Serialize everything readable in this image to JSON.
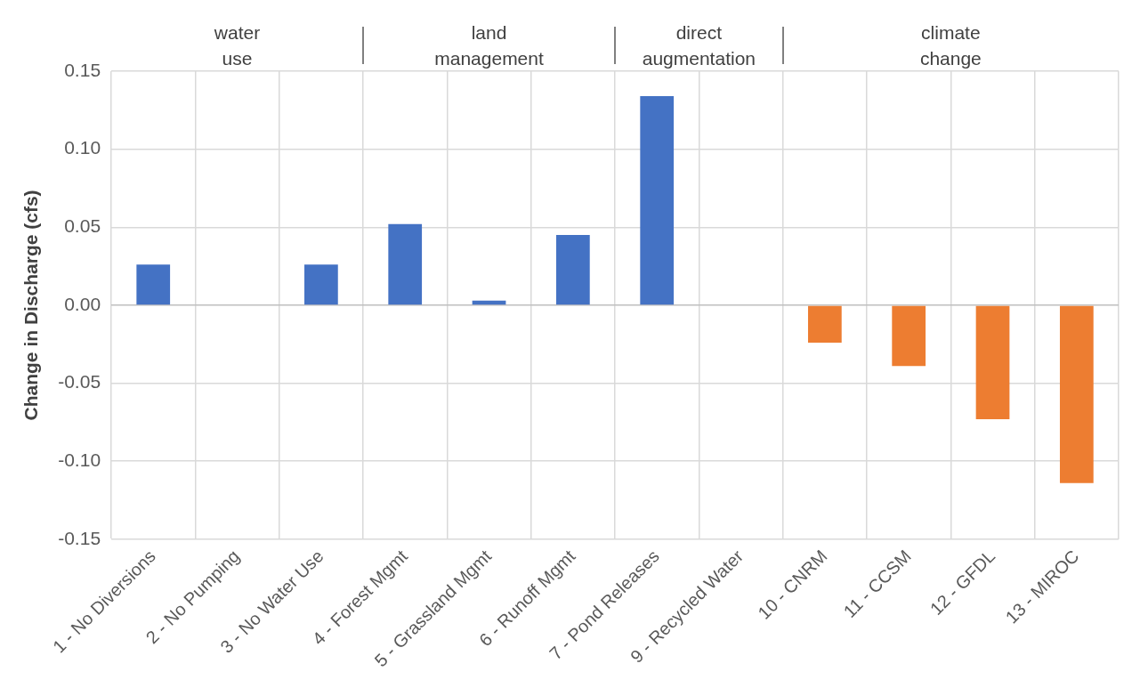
{
  "chart_data": {
    "type": "bar",
    "ylabel": "Change in Discharge (cfs)",
    "categories": [
      "1 - No Diversions",
      "2 - No Pumping",
      "3 - No Water Use",
      "4 - Forest Mgmt",
      "5 - Grassland Mgmt",
      "6 - Runoff Mgmt",
      "7 - Pond Releases",
      "9 - Recycled Water",
      "10 - CNRM",
      "11 - CCSM",
      "12 - GFDL",
      "13 - MIROC"
    ],
    "values": [
      0.026,
      0,
      0.026,
      0.052,
      0.003,
      0.045,
      0.134,
      0,
      -0.024,
      -0.039,
      -0.073,
      -0.114
    ],
    "colors": [
      "#4472c4",
      "#4472c4",
      "#4472c4",
      "#4472c4",
      "#4472c4",
      "#4472c4",
      "#4472c4",
      "#4472c4",
      "#ed7d31",
      "#ed7d31",
      "#ed7d31",
      "#ed7d31"
    ],
    "ylim": [
      -0.15,
      0.15
    ],
    "yticks": [
      {
        "value": -0.15,
        "label": "-0.15"
      },
      {
        "value": -0.1,
        "label": "-0.10"
      },
      {
        "value": -0.05,
        "label": "-0.05"
      },
      {
        "value": 0,
        "label": "0.00"
      },
      {
        "value": 0.05,
        "label": "0.05"
      },
      {
        "value": 0.1,
        "label": "0.10"
      },
      {
        "value": 0.15,
        "label": "0.15"
      }
    ],
    "grid": true,
    "annotations": [
      "water use",
      "land management",
      "direct augmentation",
      "climate change"
    ]
  }
}
